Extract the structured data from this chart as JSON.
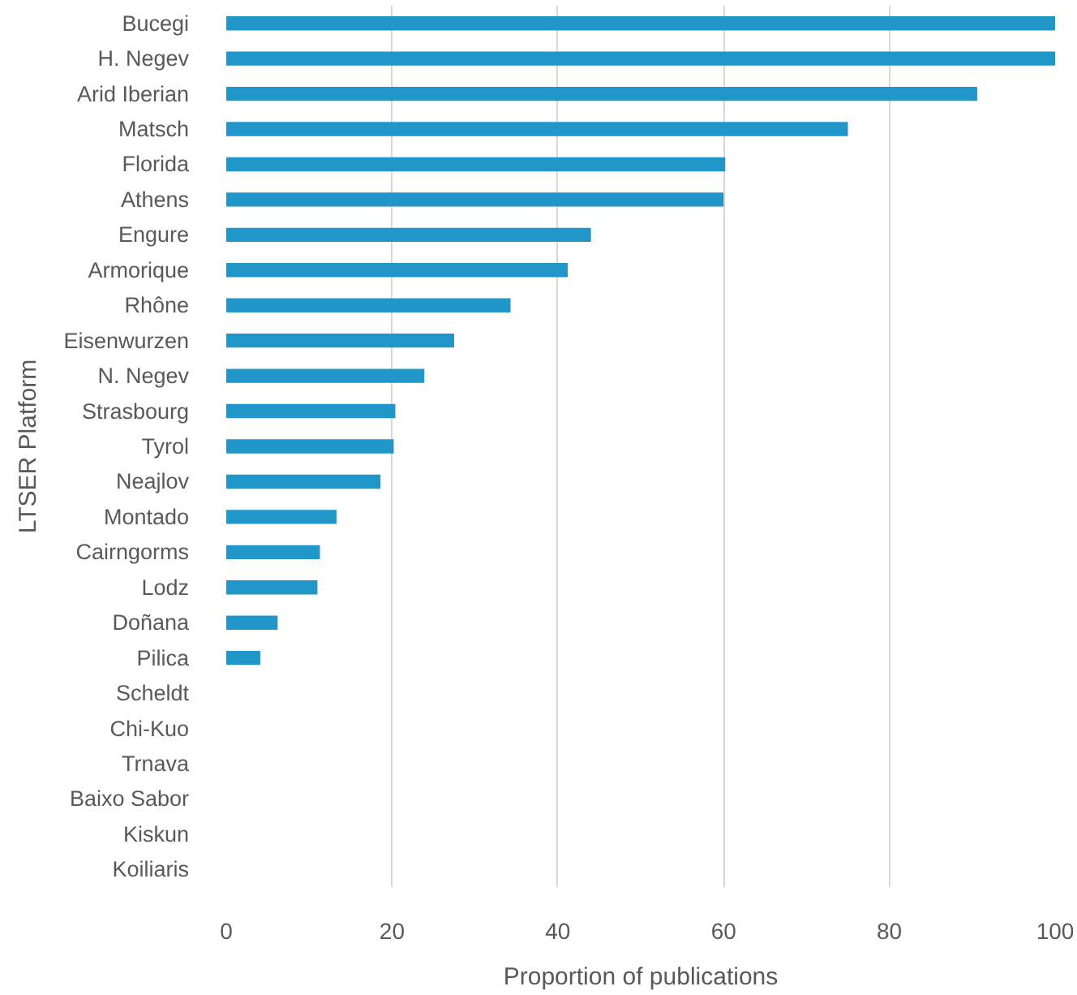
{
  "chart_data": {
    "type": "bar",
    "orientation": "horizontal",
    "xlabel": "Proportion of publications",
    "ylabel": "LTSER Platform",
    "categories": [
      "Bucegi",
      "H. Negev",
      "Arid Iberian",
      "Matsch",
      "Florida",
      "Athens",
      "Engure",
      "Armorique",
      "Rhône",
      "Eisenwurzen",
      "N. Negev",
      "Strasbourg",
      "Tyrol",
      "Neajlov",
      "Montado",
      "Cairngorms",
      "Lodz",
      "Doñana",
      "Pilica",
      "Scheldt",
      "Chi-Kuo",
      "Trnava",
      "Baixo Sabor",
      "Kiskun",
      "Koiliaris"
    ],
    "values": [
      100,
      100,
      90.6,
      75,
      60.2,
      60,
      44,
      41.2,
      34.3,
      27.5,
      23.9,
      20.4,
      20.2,
      18.6,
      13.3,
      11.3,
      11,
      6.2,
      4.1,
      0,
      0,
      0,
      0,
      0,
      0
    ],
    "color": "#2196c8",
    "xlim": [
      0,
      100
    ],
    "xticks": [
      0,
      20,
      40,
      60,
      80,
      100
    ],
    "grid": "x"
  }
}
